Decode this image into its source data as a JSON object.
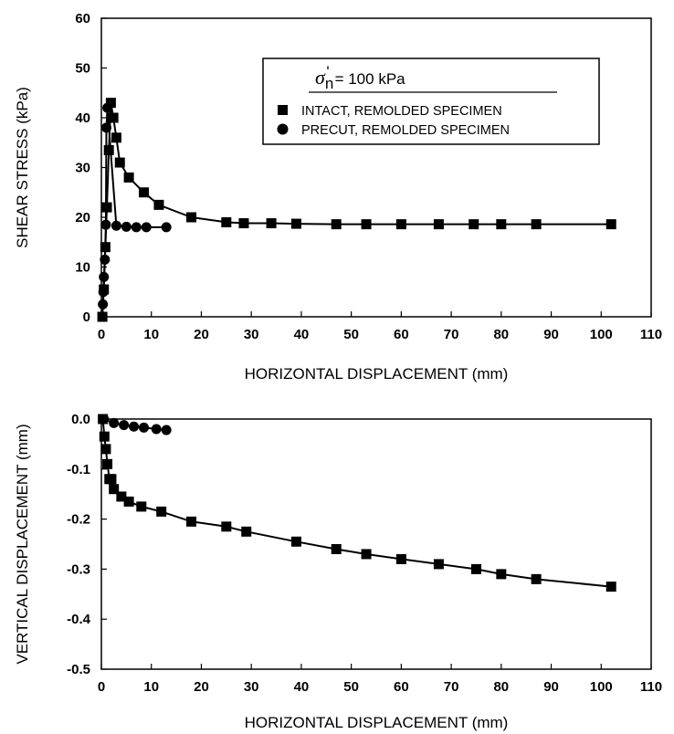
{
  "chart_data": [
    {
      "type": "line",
      "xlabel": "HORIZONTAL DISPLACEMENT (mm)",
      "ylabel": "SHEAR STRESS (kPa)",
      "xlim": [
        0,
        110
      ],
      "ylim": [
        0,
        60
      ],
      "xticks": [
        "0",
        "10",
        "20",
        "30",
        "40",
        "50",
        "60",
        "70",
        "80",
        "90",
        "100",
        "110"
      ],
      "yticks": [
        "0",
        "10",
        "20",
        "30",
        "40",
        "50",
        "60"
      ],
      "grid": false,
      "legend_placement": "top-right",
      "legend_header": {
        "symbol": "σ",
        "subscript": "n",
        "prime": "'",
        "text": "= 100 kPa"
      },
      "series": [
        {
          "name": "INTACT, REMOLDED SPECIMEN",
          "marker": "square",
          "x": [
            0.2,
            0.5,
            0.8,
            1.1,
            1.5,
            1.9,
            2.4,
            3.0,
            3.7,
            5.5,
            8.5,
            11.5,
            18.0,
            25.0,
            28.5,
            34.0,
            39.0,
            47.0,
            53.0,
            60.0,
            67.5,
            74.5,
            80.0,
            87.0,
            102.0
          ],
          "y": [
            0,
            5.5,
            14.0,
            22.0,
            33.5,
            43.0,
            40.0,
            36.0,
            31.0,
            28.0,
            25.0,
            22.5,
            20.0,
            19.0,
            18.8,
            18.8,
            18.7,
            18.6,
            18.6,
            18.6,
            18.6,
            18.6,
            18.6,
            18.6,
            18.6
          ]
        },
        {
          "name": "PRECUT, REMOLDED SPECIMEN",
          "marker": "circle",
          "x": [
            0.3,
            0.4,
            0.5,
            0.7,
            0.9,
            1.0,
            1.2,
            3.0,
            5.0,
            7.0,
            9.0,
            13.0
          ],
          "y": [
            2.5,
            5.0,
            8.0,
            11.5,
            18.5,
            38.0,
            42.0,
            18.3,
            18.1,
            18.0,
            18.0,
            18.0
          ]
        }
      ]
    },
    {
      "type": "line",
      "xlabel": "HORIZONTAL DISPLACEMENT (mm)",
      "ylabel": "VERTICAL DISPLACEMENT (mm)",
      "xlim": [
        0,
        110
      ],
      "ylim": [
        -0.5,
        0.0
      ],
      "xticks": [
        "0",
        "10",
        "20",
        "30",
        "40",
        "50",
        "60",
        "70",
        "80",
        "90",
        "100",
        "110"
      ],
      "yticks": [
        "0.0",
        "-0.1",
        "-0.2",
        "-0.3",
        "-0.4",
        "-0.5"
      ],
      "grid": false,
      "series": [
        {
          "name": "INTACT, REMOLDED SPECIMEN",
          "marker": "square",
          "x": [
            0.3,
            0.6,
            0.9,
            1.2,
            1.6,
            2.0,
            2.5,
            4.0,
            5.5,
            8.0,
            12.0,
            18.0,
            25.0,
            29.0,
            39.0,
            47.0,
            53.0,
            60.0,
            67.5,
            75.0,
            80.0,
            87.0,
            102.0
          ],
          "y": [
            0.0,
            -0.035,
            -0.06,
            -0.09,
            -0.12,
            -0.12,
            -0.14,
            -0.155,
            -0.165,
            -0.175,
            -0.185,
            -0.205,
            -0.215,
            -0.225,
            -0.245,
            -0.26,
            -0.27,
            -0.28,
            -0.29,
            -0.3,
            -0.31,
            -0.32,
            -0.335
          ]
        },
        {
          "name": "PRECUT, REMOLDED SPECIMEN",
          "marker": "circle",
          "x": [
            0.5,
            2.5,
            4.5,
            6.5,
            8.5,
            11.0,
            13.0
          ],
          "y": [
            0.0,
            -0.008,
            -0.012,
            -0.015,
            -0.017,
            -0.02,
            -0.022
          ]
        }
      ]
    }
  ]
}
